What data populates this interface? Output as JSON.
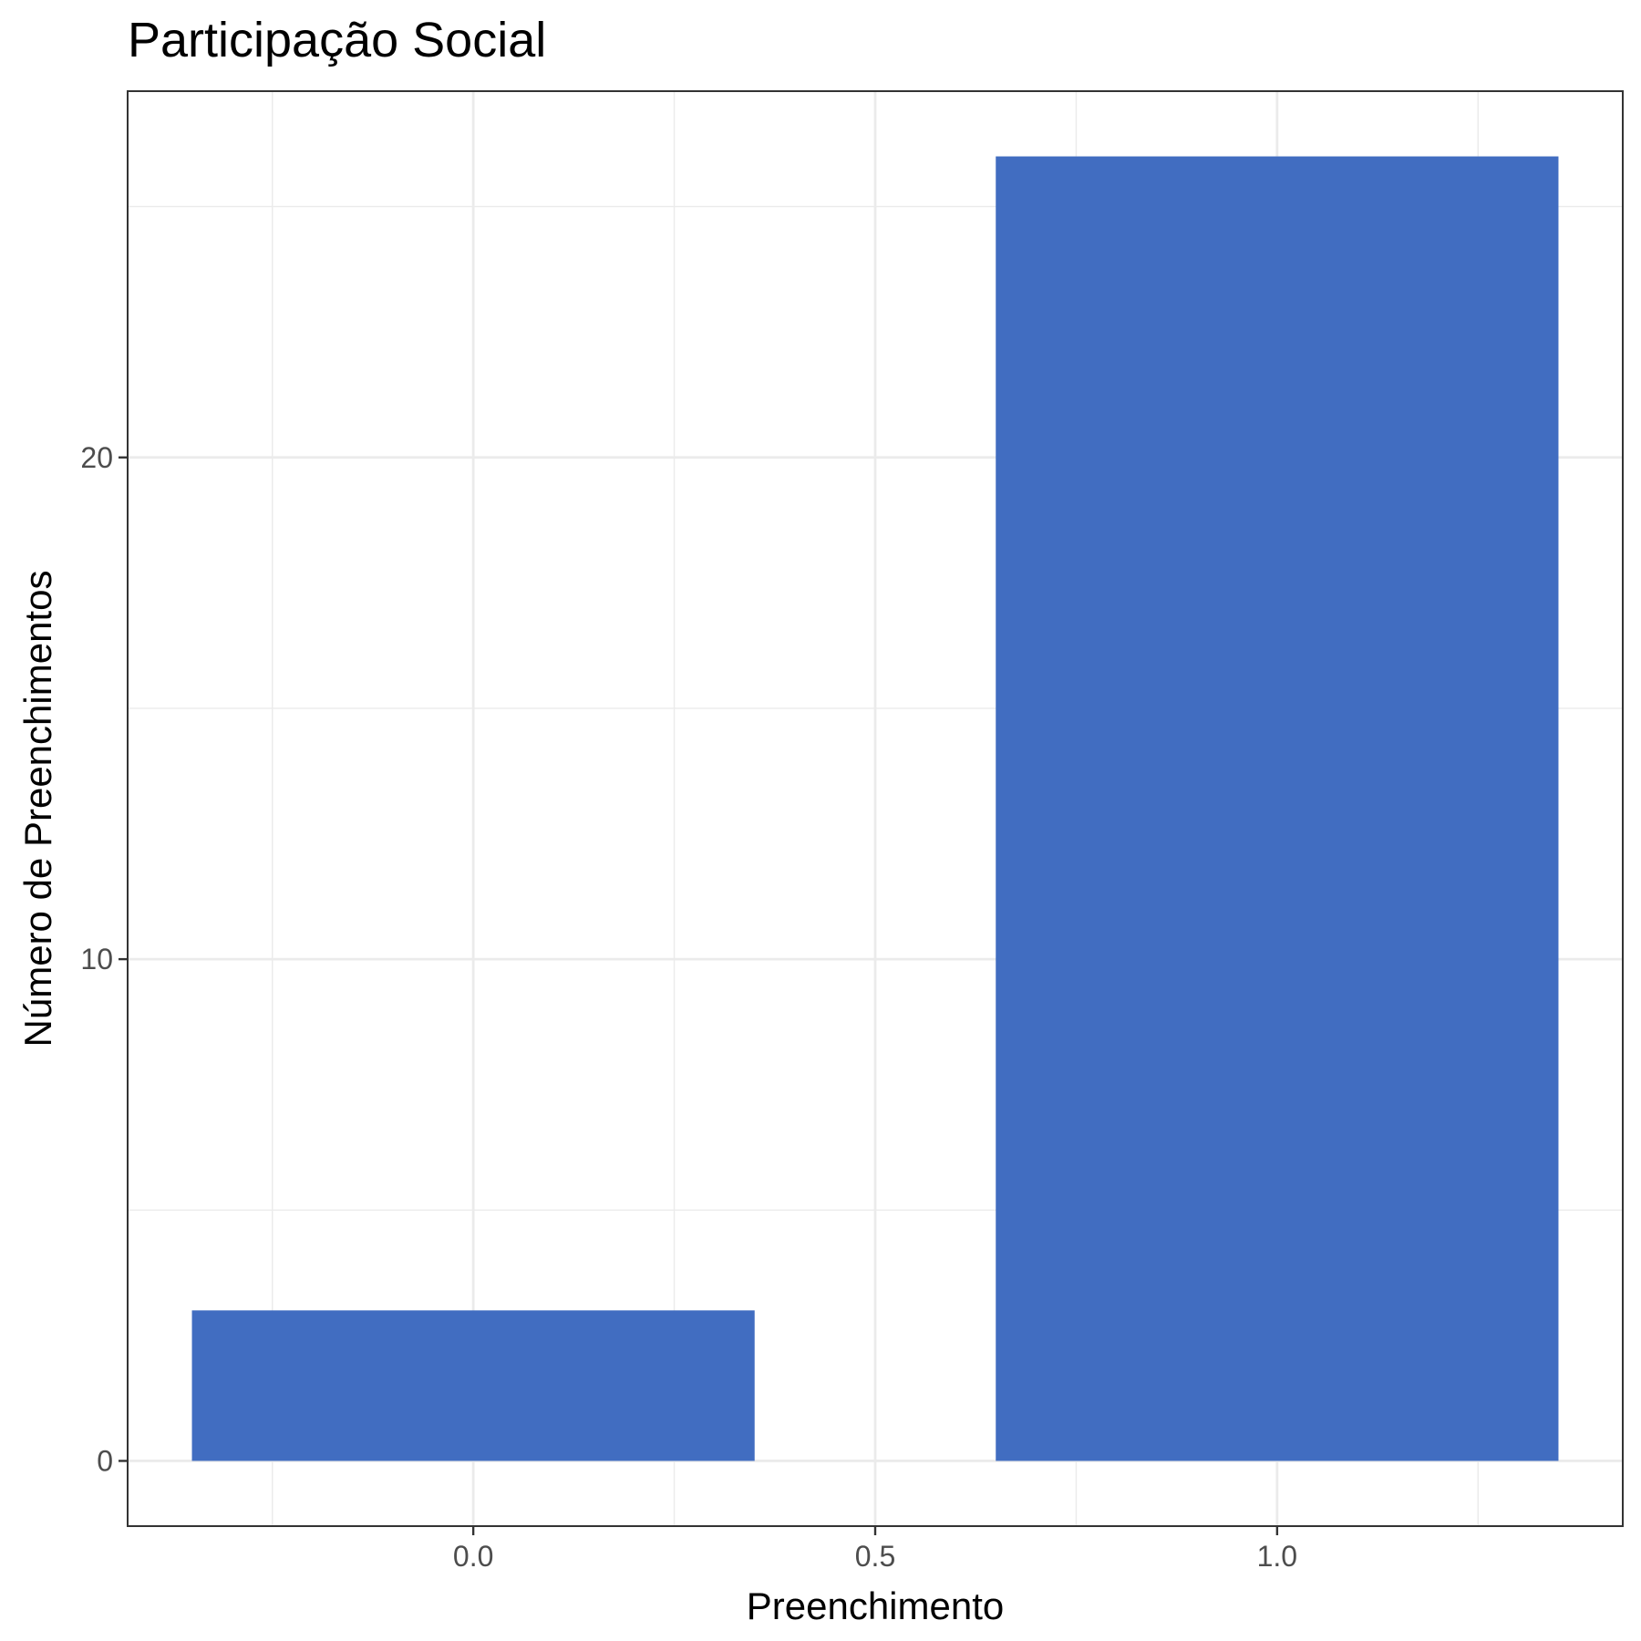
{
  "chart_data": {
    "type": "bar",
    "title": "Participação Social",
    "xlabel": "Preenchimento",
    "ylabel": "Número de Preenchimentos",
    "x": [
      0,
      1
    ],
    "values": [
      3,
      26
    ],
    "bar_width": 0.7,
    "xlim": [
      -0.43,
      1.43
    ],
    "ylim": [
      -1.3,
      27.3
    ],
    "x_ticks": [
      0,
      0.5,
      1
    ],
    "x_tick_labels": [
      "0.0",
      "0.5",
      "1.0"
    ],
    "x_minor_ticks": [
      -0.25,
      0.25,
      0.75,
      1.25
    ],
    "y_ticks": [
      0,
      10,
      20
    ],
    "y_tick_labels": [
      "0",
      "10",
      "20"
    ],
    "y_minor_ticks": [
      5,
      15,
      25
    ],
    "grid": true,
    "bar_color": "#416dc1",
    "panel_border_color": "#333333",
    "grid_color": "#ebebeb"
  }
}
